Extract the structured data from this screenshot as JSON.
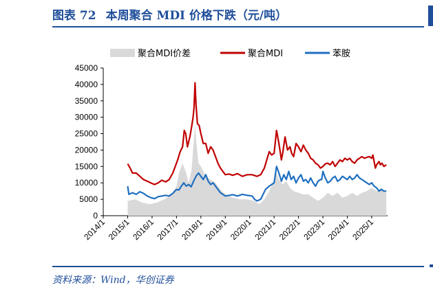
{
  "header": {
    "figure_number": "图表 72",
    "title": "本周聚合 MDI 价格下跌（元/吨）"
  },
  "source": "资料来源：Wind，华创证券",
  "colors": {
    "accent": "#1f4e9a",
    "spread_fill": "#d9d9d9",
    "mdi_line": "#c00000",
    "aniline_line": "#1f6fc0"
  },
  "chart_data": {
    "type": "line",
    "ylim": [
      0,
      45000
    ],
    "yticks": [
      "0",
      "5000",
      "10000",
      "15000",
      "20000",
      "25000",
      "30000",
      "35000",
      "40000",
      "45000"
    ],
    "xlim": [
      2014.0,
      2025.65
    ],
    "xticks": [
      "2014/1",
      "2015/1",
      "2016/1",
      "2017/1",
      "2018/1",
      "2019/1",
      "2020/1",
      "2021/1",
      "2022/1",
      "2023/1",
      "2024/1",
      "2025/1"
    ],
    "legend_position": "top",
    "series": [
      {
        "name": "聚合MDI价差",
        "style": "area",
        "color": "#d9d9d9",
        "points": [
          [
            2015.0,
            4500
          ],
          [
            2015.3,
            5000
          ],
          [
            2015.6,
            4000
          ],
          [
            2015.9,
            3500
          ],
          [
            2016.2,
            4000
          ],
          [
            2016.5,
            5000
          ],
          [
            2016.8,
            6500
          ],
          [
            2017.0,
            9000
          ],
          [
            2017.1,
            13000
          ],
          [
            2017.25,
            16000
          ],
          [
            2017.4,
            13000
          ],
          [
            2017.5,
            10000
          ],
          [
            2017.62,
            14000
          ],
          [
            2017.7,
            22000
          ],
          [
            2017.76,
            28000
          ],
          [
            2017.82,
            22000
          ],
          [
            2017.9,
            16000
          ],
          [
            2018.0,
            15000
          ],
          [
            2018.2,
            12000
          ],
          [
            2018.4,
            11000
          ],
          [
            2018.6,
            10000
          ],
          [
            2018.8,
            8000
          ],
          [
            2019.0,
            6500
          ],
          [
            2019.3,
            5500
          ],
          [
            2019.6,
            5000
          ],
          [
            2019.9,
            5000
          ],
          [
            2020.2,
            4500
          ],
          [
            2020.4,
            3500
          ],
          [
            2020.6,
            5000
          ],
          [
            2020.8,
            7500
          ],
          [
            2021.0,
            11000
          ],
          [
            2021.1,
            13000
          ],
          [
            2021.2,
            11000
          ],
          [
            2021.35,
            9500
          ],
          [
            2021.5,
            10500
          ],
          [
            2021.65,
            8500
          ],
          [
            2021.8,
            7500
          ],
          [
            2022.0,
            7000
          ],
          [
            2022.2,
            6500
          ],
          [
            2022.4,
            6500
          ],
          [
            2022.6,
            5500
          ],
          [
            2022.8,
            4500
          ],
          [
            2023.0,
            5500
          ],
          [
            2023.2,
            7000
          ],
          [
            2023.4,
            6000
          ],
          [
            2023.6,
            7000
          ],
          [
            2023.8,
            5500
          ],
          [
            2024.0,
            6000
          ],
          [
            2024.2,
            7000
          ],
          [
            2024.4,
            6000
          ],
          [
            2024.6,
            7000
          ],
          [
            2024.8,
            7500
          ],
          [
            2025.0,
            8500
          ],
          [
            2025.2,
            7500
          ],
          [
            2025.4,
            8500
          ],
          [
            2025.6,
            7000
          ]
        ]
      },
      {
        "name": "聚合MDI",
        "style": "line",
        "color": "#c00000",
        "points": [
          [
            2015.0,
            15800
          ],
          [
            2015.1,
            14500
          ],
          [
            2015.2,
            13000
          ],
          [
            2015.35,
            13000
          ],
          [
            2015.5,
            12000
          ],
          [
            2015.65,
            11000
          ],
          [
            2015.8,
            10500
          ],
          [
            2015.95,
            10000
          ],
          [
            2016.1,
            9500
          ],
          [
            2016.25,
            10000
          ],
          [
            2016.4,
            10800
          ],
          [
            2016.55,
            10300
          ],
          [
            2016.7,
            11000
          ],
          [
            2016.85,
            13000
          ],
          [
            2016.95,
            15000
          ],
          [
            2017.05,
            17000
          ],
          [
            2017.15,
            19500
          ],
          [
            2017.25,
            21000
          ],
          [
            2017.32,
            26000
          ],
          [
            2017.38,
            25000
          ],
          [
            2017.45,
            21000
          ],
          [
            2017.55,
            24000
          ],
          [
            2017.62,
            27000
          ],
          [
            2017.68,
            30000
          ],
          [
            2017.72,
            33000
          ],
          [
            2017.76,
            40500
          ],
          [
            2017.8,
            34000
          ],
          [
            2017.86,
            28000
          ],
          [
            2017.93,
            27500
          ],
          [
            2018.0,
            25000
          ],
          [
            2018.1,
            22000
          ],
          [
            2018.2,
            22000
          ],
          [
            2018.3,
            19000
          ],
          [
            2018.4,
            21000
          ],
          [
            2018.5,
            20000
          ],
          [
            2018.6,
            18000
          ],
          [
            2018.7,
            16000
          ],
          [
            2018.8,
            14500
          ],
          [
            2018.9,
            13500
          ],
          [
            2019.0,
            12500
          ],
          [
            2019.15,
            12700
          ],
          [
            2019.3,
            12300
          ],
          [
            2019.5,
            12800
          ],
          [
            2019.7,
            12000
          ],
          [
            2019.9,
            12500
          ],
          [
            2020.1,
            12500
          ],
          [
            2020.3,
            12000
          ],
          [
            2020.45,
            12500
          ],
          [
            2020.6,
            14500
          ],
          [
            2020.7,
            17000
          ],
          [
            2020.8,
            19500
          ],
          [
            2020.9,
            18500
          ],
          [
            2021.0,
            19000
          ],
          [
            2021.1,
            26000
          ],
          [
            2021.2,
            22000
          ],
          [
            2021.3,
            17000
          ],
          [
            2021.35,
            19000
          ],
          [
            2021.45,
            24000
          ],
          [
            2021.55,
            20000
          ],
          [
            2021.65,
            21000
          ],
          [
            2021.72,
            19000
          ],
          [
            2021.8,
            18000
          ],
          [
            2021.9,
            22000
          ],
          [
            2022.0,
            21000
          ],
          [
            2022.1,
            19500
          ],
          [
            2022.2,
            21500
          ],
          [
            2022.3,
            20000
          ],
          [
            2022.4,
            19000
          ],
          [
            2022.5,
            17500
          ],
          [
            2022.6,
            17000
          ],
          [
            2022.7,
            16000
          ],
          [
            2022.8,
            15500
          ],
          [
            2022.9,
            14500
          ],
          [
            2023.0,
            15000
          ],
          [
            2023.1,
            15800
          ],
          [
            2023.2,
            16000
          ],
          [
            2023.3,
            15500
          ],
          [
            2023.4,
            16500
          ],
          [
            2023.5,
            15000
          ],
          [
            2023.6,
            16000
          ],
          [
            2023.7,
            17000
          ],
          [
            2023.8,
            16500
          ],
          [
            2023.9,
            17500
          ],
          [
            2024.0,
            17000
          ],
          [
            2024.1,
            17500
          ],
          [
            2024.2,
            16500
          ],
          [
            2024.3,
            16000
          ],
          [
            2024.4,
            17000
          ],
          [
            2024.5,
            17500
          ],
          [
            2024.6,
            18000
          ],
          [
            2024.7,
            17500
          ],
          [
            2024.8,
            17800
          ],
          [
            2024.9,
            18000
          ],
          [
            2025.0,
            17500
          ],
          [
            2025.05,
            18500
          ],
          [
            2025.1,
            16500
          ],
          [
            2025.15,
            14500
          ],
          [
            2025.2,
            15500
          ],
          [
            2025.3,
            16500
          ],
          [
            2025.35,
            15500
          ],
          [
            2025.42,
            16000
          ],
          [
            2025.5,
            15000
          ],
          [
            2025.6,
            15500
          ]
        ]
      },
      {
        "name": "苯胺",
        "style": "line",
        "color": "#1f6fc0",
        "points": [
          [
            2015.0,
            9000
          ],
          [
            2015.05,
            6500
          ],
          [
            2015.2,
            7000
          ],
          [
            2015.35,
            6500
          ],
          [
            2015.5,
            7300
          ],
          [
            2015.65,
            6800
          ],
          [
            2015.8,
            6000
          ],
          [
            2015.95,
            5500
          ],
          [
            2016.1,
            5200
          ],
          [
            2016.25,
            5800
          ],
          [
            2016.4,
            6000
          ],
          [
            2016.55,
            6200
          ],
          [
            2016.7,
            6000
          ],
          [
            2016.85,
            6800
          ],
          [
            2017.0,
            8000
          ],
          [
            2017.1,
            7800
          ],
          [
            2017.2,
            9000
          ],
          [
            2017.3,
            10000
          ],
          [
            2017.4,
            9000
          ],
          [
            2017.5,
            9500
          ],
          [
            2017.6,
            8800
          ],
          [
            2017.7,
            10500
          ],
          [
            2017.8,
            12000
          ],
          [
            2017.9,
            13000
          ],
          [
            2018.0,
            12000
          ],
          [
            2018.1,
            11000
          ],
          [
            2018.2,
            12500
          ],
          [
            2018.3,
            10500
          ],
          [
            2018.4,
            9500
          ],
          [
            2018.5,
            10000
          ],
          [
            2018.6,
            9000
          ],
          [
            2018.7,
            8000
          ],
          [
            2018.8,
            7000
          ],
          [
            2018.9,
            6500
          ],
          [
            2019.0,
            6000
          ],
          [
            2019.15,
            6200
          ],
          [
            2019.3,
            6400
          ],
          [
            2019.5,
            6000
          ],
          [
            2019.7,
            6500
          ],
          [
            2019.9,
            6200
          ],
          [
            2020.1,
            6000
          ],
          [
            2020.2,
            5000
          ],
          [
            2020.3,
            4500
          ],
          [
            2020.45,
            5000
          ],
          [
            2020.55,
            6500
          ],
          [
            2020.65,
            8000
          ],
          [
            2020.8,
            9000
          ],
          [
            2021.0,
            10000
          ],
          [
            2021.1,
            15000
          ],
          [
            2021.2,
            13000
          ],
          [
            2021.3,
            10500
          ],
          [
            2021.4,
            12500
          ],
          [
            2021.5,
            11000
          ],
          [
            2021.6,
            13500
          ],
          [
            2021.7,
            11000
          ],
          [
            2021.8,
            12000
          ],
          [
            2021.9,
            10000
          ],
          [
            2022.0,
            11500
          ],
          [
            2022.1,
            12500
          ],
          [
            2022.2,
            10500
          ],
          [
            2022.3,
            11000
          ],
          [
            2022.4,
            10000
          ],
          [
            2022.5,
            11500
          ],
          [
            2022.6,
            10000
          ],
          [
            2022.7,
            9000
          ],
          [
            2022.8,
            10500
          ],
          [
            2022.9,
            11000
          ],
          [
            2022.95,
            11000
          ],
          [
            2023.0,
            13500
          ],
          [
            2023.1,
            11500
          ],
          [
            2023.2,
            10000
          ],
          [
            2023.3,
            10500
          ],
          [
            2023.4,
            11500
          ],
          [
            2023.5,
            12000
          ],
          [
            2023.6,
            10500
          ],
          [
            2023.7,
            11000
          ],
          [
            2023.8,
            12000
          ],
          [
            2023.9,
            11500
          ],
          [
            2024.0,
            11000
          ],
          [
            2024.1,
            12000
          ],
          [
            2024.2,
            11000
          ],
          [
            2024.3,
            11500
          ],
          [
            2024.4,
            12500
          ],
          [
            2024.5,
            11500
          ],
          [
            2024.6,
            11000
          ],
          [
            2024.7,
            10500
          ],
          [
            2024.8,
            10000
          ],
          [
            2024.9,
            9500
          ],
          [
            2025.0,
            10000
          ],
          [
            2025.1,
            9000
          ],
          [
            2025.2,
            8500
          ],
          [
            2025.3,
            7500
          ],
          [
            2025.4,
            8000
          ],
          [
            2025.5,
            7500
          ],
          [
            2025.6,
            7500
          ]
        ]
      }
    ]
  }
}
